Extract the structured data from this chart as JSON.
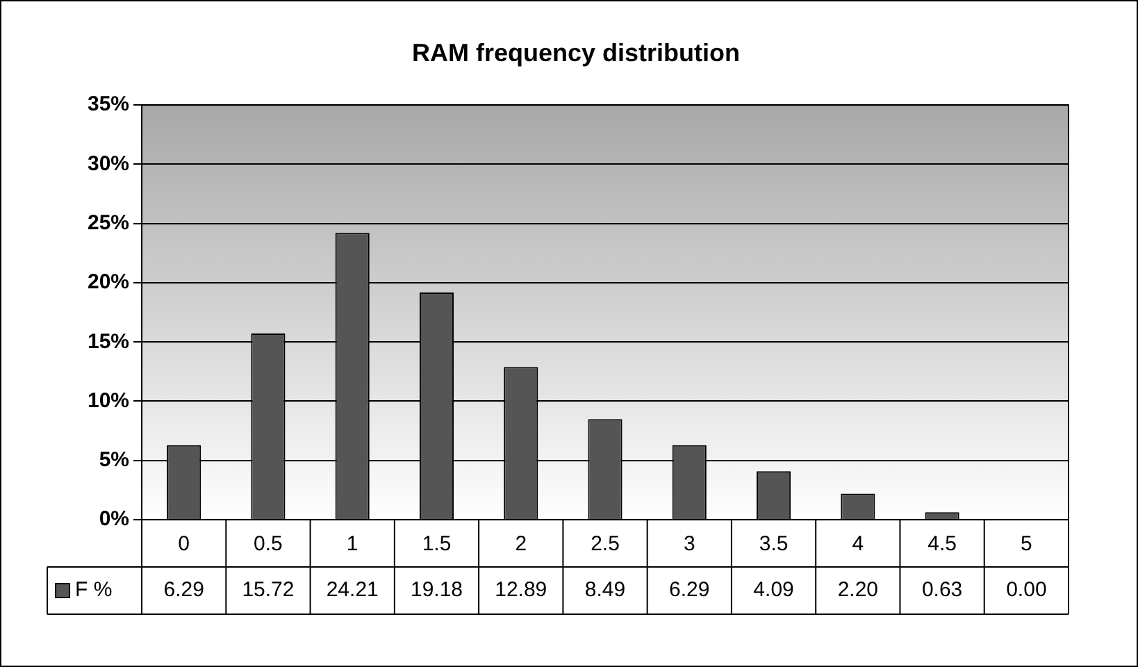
{
  "chart_data": {
    "type": "bar",
    "title": "RAM frequency distribution",
    "categories": [
      "0",
      "0.5",
      "1",
      "1.5",
      "2",
      "2.5",
      "3",
      "3.5",
      "4",
      "4.5",
      "5"
    ],
    "series": [
      {
        "name": "F %",
        "color": "#555555",
        "values": [
          6.29,
          15.72,
          24.21,
          19.18,
          12.89,
          8.49,
          6.29,
          4.09,
          2.2,
          0.63,
          0
        ],
        "value_labels": [
          "6.29",
          "15.72",
          "24.21",
          "19.18",
          "12.89",
          "8.49",
          "6.29",
          "4.09",
          "2.20",
          "0.63",
          "0.00"
        ]
      }
    ],
    "ylim": [
      0,
      35
    ],
    "yticks": [
      {
        "value": 0,
        "label": "0%"
      },
      {
        "value": 5,
        "label": "5%"
      },
      {
        "value": 10,
        "label": "10%"
      },
      {
        "value": 15,
        "label": "15%"
      },
      {
        "value": 20,
        "label": "20%"
      },
      {
        "value": 25,
        "label": "25%"
      },
      {
        "value": 30,
        "label": "30%"
      },
      {
        "value": 35,
        "label": "35%"
      }
    ],
    "grid": "y",
    "legend": "bottom"
  }
}
